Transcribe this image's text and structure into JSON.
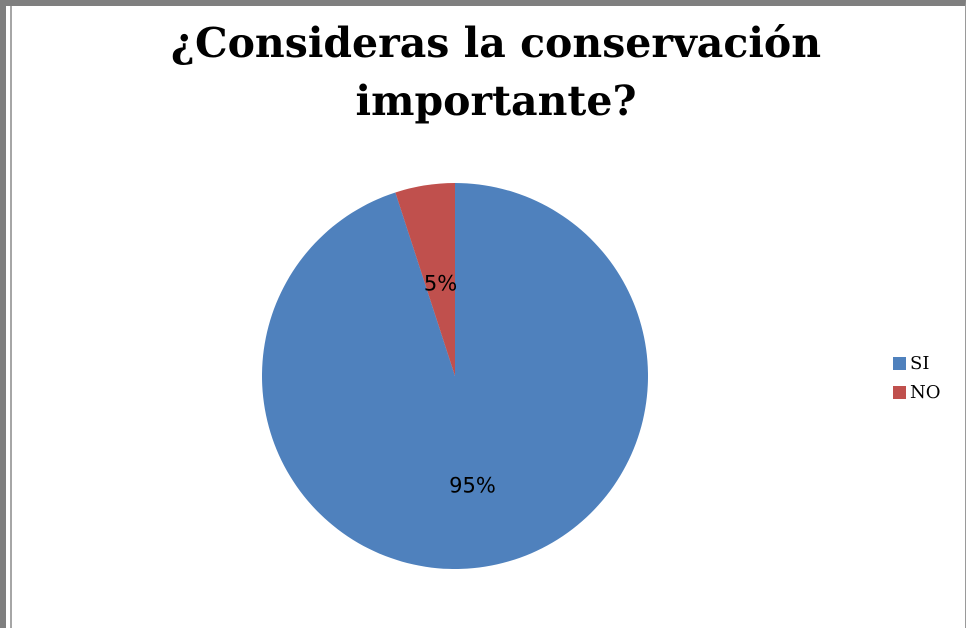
{
  "chart_data": {
    "type": "pie",
    "title": "¿Consideras la conservación importante?",
    "categories": [
      "SI",
      "NO"
    ],
    "values": [
      95,
      5
    ],
    "labels": [
      "95%",
      "5%"
    ],
    "colors": [
      "#4f81bd",
      "#c0504d"
    ],
    "legend_position": "right",
    "start_angle": "12 o'clock, clockwise"
  }
}
